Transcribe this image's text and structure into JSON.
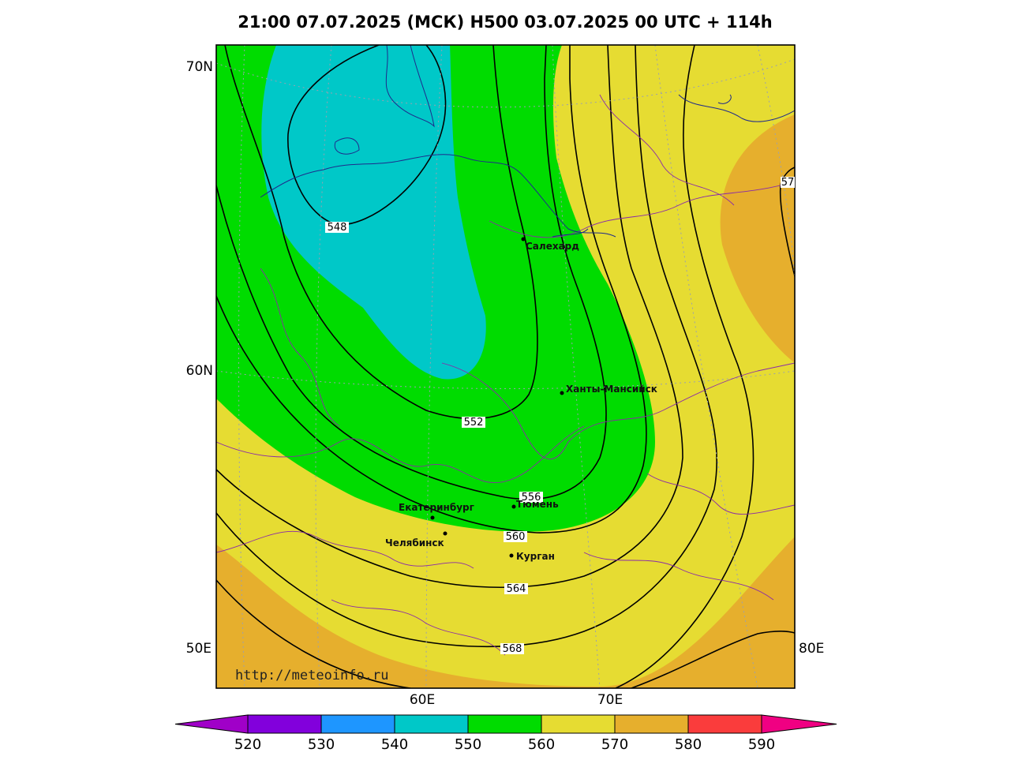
{
  "title": "21:00 07.07.2025 (МСК) H500  03.07.2025 00 UTC + 114h",
  "axis": {
    "lat_labels": [
      "70N",
      "60N",
      "50E",
      "80E"
    ],
    "lon_labels": [
      "60E",
      "70E"
    ]
  },
  "cities": [
    {
      "name": "Салехард"
    },
    {
      "name": "Ханты-Мансийск"
    },
    {
      "name": "Екатеринбург"
    },
    {
      "name": "Тюмень"
    },
    {
      "name": "Челябинск"
    },
    {
      "name": "Курган"
    }
  ],
  "contour_labels": [
    "548",
    "552",
    "556",
    "560",
    "564",
    "568",
    "57"
  ],
  "watermark": "http://meteoinfo.ru",
  "colorbar": {
    "ticks": [
      "520",
      "530",
      "540",
      "550",
      "560",
      "570",
      "580",
      "590"
    ],
    "colors": [
      "#a000c8",
      "#8200dc",
      "#1e96ff",
      "#00c8c8",
      "#00dc00",
      "#e6dc32",
      "#e6af2d",
      "#fa3c3c",
      "#f00082"
    ]
  },
  "fill_colors": {
    "540_550": "#00c8c8",
    "550_560": "#00dc00",
    "560_570": "#e6dc32",
    "570_580": "#e6af2d"
  }
}
